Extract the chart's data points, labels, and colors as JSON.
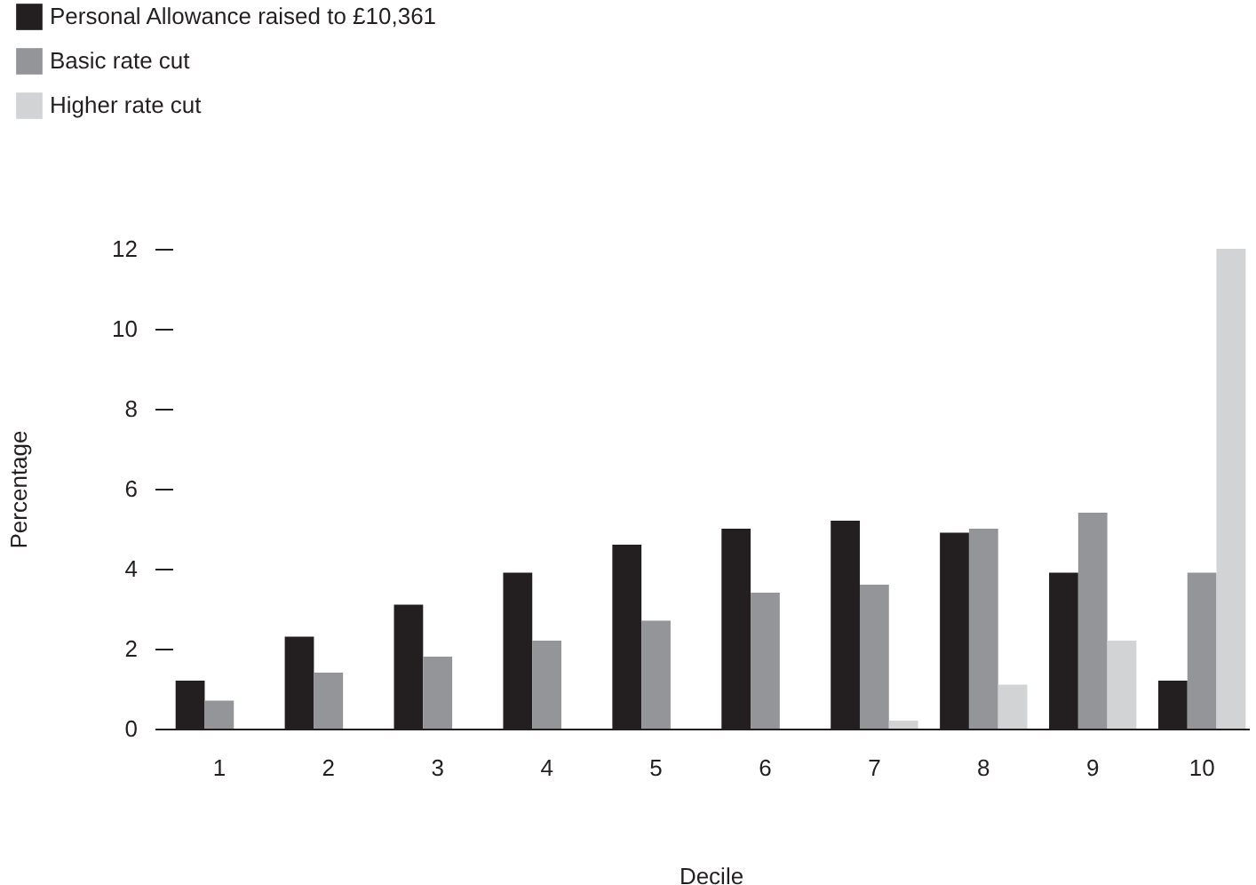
{
  "chart_data": {
    "type": "bar",
    "xlabel": "Decile",
    "ylabel": "Percentage",
    "categories": [
      "1",
      "2",
      "3",
      "4",
      "5",
      "6",
      "7",
      "8",
      "9",
      "10"
    ],
    "series": [
      {
        "name": "Personal Allowance raised to £10,361",
        "color": "#231f20",
        "values": [
          1.2,
          2.3,
          3.1,
          3.9,
          4.6,
          5.0,
          5.2,
          4.9,
          3.9,
          1.2
        ]
      },
      {
        "name": "Basic rate cut",
        "color": "#939598",
        "values": [
          0.7,
          1.4,
          1.8,
          2.2,
          2.7,
          3.4,
          3.6,
          5.0,
          5.4,
          3.9
        ]
      },
      {
        "name": "Higher rate cut",
        "color": "#d1d3d4",
        "values": [
          0,
          0,
          0,
          0,
          0,
          0,
          0.2,
          1.1,
          2.2,
          12.0
        ]
      }
    ],
    "ylim": [
      0,
      12
    ],
    "yticks": [
      0,
      2,
      4,
      6,
      8,
      10,
      12
    ],
    "grid": false,
    "legend": "top left"
  }
}
